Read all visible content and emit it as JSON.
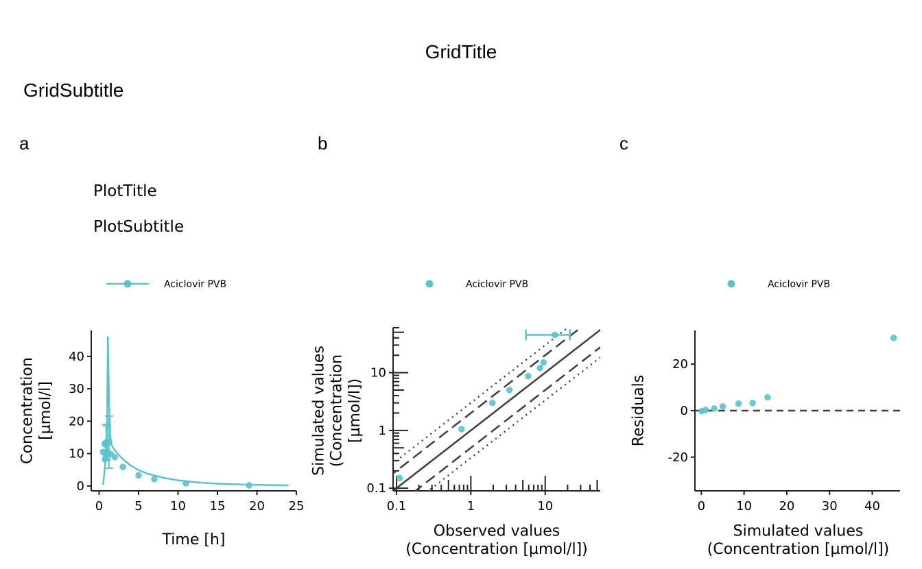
{
  "grid": {
    "title": "GridTitle",
    "subtitle": "GridSubtitle"
  },
  "colors": {
    "series": "#5BC2CC",
    "ref": "#3d3d3d",
    "axis": "#222222"
  },
  "chart_data": [
    {
      "tag": "a",
      "type": "line",
      "title": "PlotTitle",
      "subtitle": "PlotSubtitle",
      "legend": {
        "placement": "top-left",
        "entries": [
          "Aciclovir PVB"
        ]
      },
      "xlabel": "Time [h]",
      "ylabel": [
        "Concentration",
        "[µmol/l]"
      ],
      "xlim": [
        -1,
        25
      ],
      "ylim": [
        -1.5,
        48
      ],
      "xticks": [
        0,
        5,
        10,
        15,
        20,
        25
      ],
      "yticks": [
        0,
        10,
        20,
        30,
        40
      ],
      "grid": false,
      "series": [
        {
          "name": "Aciclovir PVB",
          "simulated_line": {
            "x": [
              0.5,
              0.75,
              1.0,
              1.1,
              1.2,
              1.3,
              1.4,
              1.55,
              1.7,
              2.0,
              2.5,
              3.0,
              4.0,
              5.0,
              6.0,
              8.0,
              10.0,
              12.0,
              15.0,
              18.0,
              21.0,
              24.0
            ],
            "y": [
              0.3,
              6.0,
              17.0,
              46.0,
              34.0,
              22.0,
              16.0,
              13.0,
              12.0,
              11.0,
              9.5,
              8.3,
              6.3,
              4.9,
              3.9,
              2.6,
              1.75,
              1.2,
              0.7,
              0.45,
              0.3,
              0.2
            ]
          },
          "observed": {
            "x": [
              0.5,
              0.7,
              0.75,
              0.8,
              0.85,
              0.9,
              0.95,
              1.0,
              1.1,
              1.25,
              1.5,
              2.0,
              3.0,
              5.0,
              7.0,
              11.0,
              19.0
            ],
            "y": [
              10.5,
              13.0,
              8.2,
              12.8,
              9.5,
              13.5,
              10.6,
              13.5,
              10.2,
              13.5,
              9.8,
              8.9,
              5.9,
              3.3,
              2.1,
              0.8,
              0.2
            ]
          },
          "error_bars": [
            {
              "x": 0.9,
              "low": 8.0,
              "high": 19.0
            },
            {
              "x": 1.0,
              "low": 8.3,
              "high": 18.5
            },
            {
              "x": 1.25,
              "low": 5.5,
              "high": 21.6
            }
          ]
        }
      ]
    },
    {
      "tag": "b",
      "type": "scatter",
      "legend": {
        "placement": "top",
        "entries": [
          "Aciclovir PVB"
        ]
      },
      "xlabel": [
        "Observed values",
        "(Concentration [µmol/l])"
      ],
      "ylabel": [
        "Simulated values",
        "(Concentration",
        "[µmol/l])"
      ],
      "xscale": "log",
      "yscale": "log",
      "xlim": [
        0.09,
        55
      ],
      "ylim": [
        0.09,
        60
      ],
      "xticks": [
        0.1,
        1,
        10
      ],
      "xtick_labels": [
        "0.1",
        "1",
        "10"
      ],
      "yticks": [
        0.1,
        1,
        10
      ],
      "ytick_labels": [
        "0.1",
        "1",
        "10"
      ],
      "reference_lines": {
        "identity": 1,
        "dashed_fold": 2,
        "dotted_fold": 3
      },
      "series": [
        {
          "name": "Aciclovir PVB",
          "x": [
            0.11,
            0.75,
            1.95,
            3.3,
            5.9,
            8.5,
            9.5,
            13.5
          ],
          "y": [
            0.15,
            1.05,
            3.0,
            5.0,
            8.7,
            12.0,
            15.0,
            45.0
          ],
          "x_error": [
            {
              "index": 7,
              "low": 5.5,
              "high": 21.5
            }
          ]
        }
      ]
    },
    {
      "tag": "c",
      "type": "scatter",
      "legend": {
        "placement": "top",
        "entries": [
          "Aciclovir PVB"
        ]
      },
      "xlabel": [
        "Simulated values",
        "(Concentration [µmol/l])"
      ],
      "ylabel": [
        "Residuals"
      ],
      "xlim": [
        -1.5,
        46.5
      ],
      "ylim": [
        -34.5,
        34.5
      ],
      "xticks": [
        0,
        10,
        20,
        30,
        40
      ],
      "yticks": [
        -20,
        0,
        20
      ],
      "reference_line_y": 0,
      "series": [
        {
          "name": "Aciclovir PVB",
          "x": [
            0.1,
            1.0,
            3.0,
            5.0,
            8.7,
            12.0,
            15.5,
            45.0
          ],
          "y": [
            -0.2,
            0.3,
            0.9,
            1.8,
            3.0,
            3.3,
            5.7,
            31.3
          ]
        }
      ]
    }
  ]
}
